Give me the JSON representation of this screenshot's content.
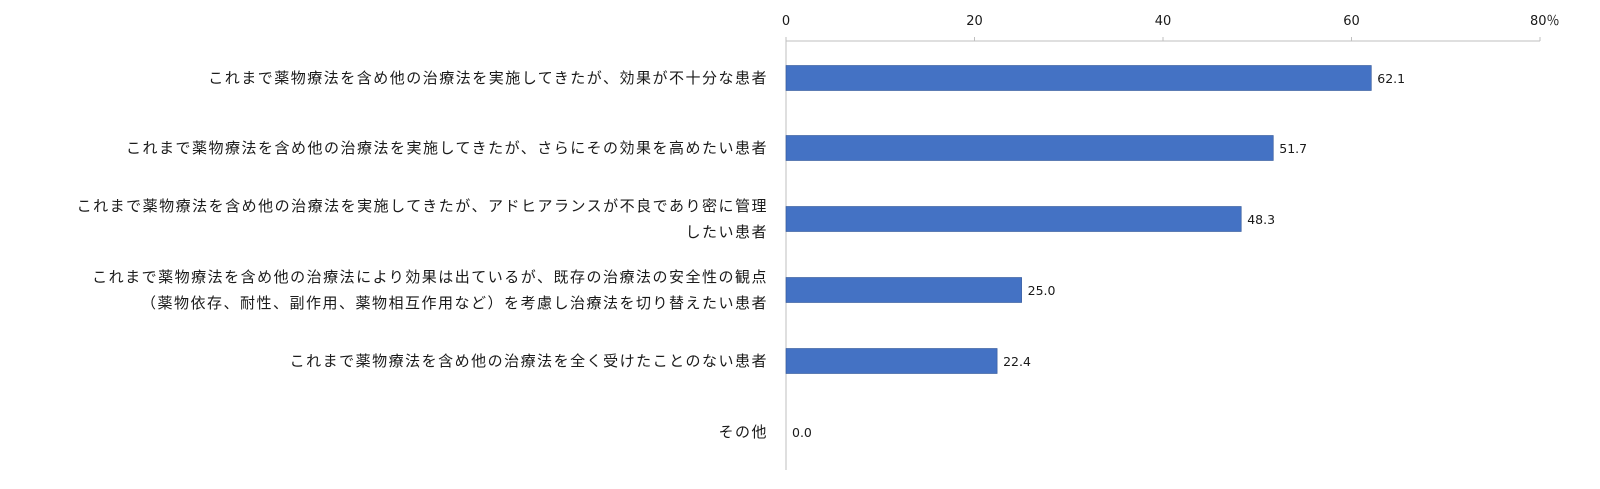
{
  "chart_data": {
    "type": "bar",
    "orientation": "horizontal",
    "categories": [
      "これまで薬物療法を含め他の治療法を実施してきたが、効果が不十分な患者",
      "これまで薬物療法を含め他の治療法を実施してきたが、さらにその効果を高めたい患者",
      "これまで薬物療法を含め他の治療法を実施してきたが、アドヒアランスが不良であり密に管理したい患者",
      "これまで薬物療法を含め他の治療法により効果は出ているが、既存の治療法の安全性の観点（薬物依存、耐性、副作用、薬物相互作用など）を考慮し治療法を切り替えたい患者",
      "これまで薬物療法を含め他の治療法を全く受けたことのない患者",
      "その他"
    ],
    "category_lines": [
      [
        "これまで薬物療法を含め他の治療法を実施してきたが、効果が不十分な患者"
      ],
      [
        "これまで薬物療法を含め他の治療法を実施してきたが、さらにその効果を高めたい患者"
      ],
      [
        "これまで薬物療法を含め他の治療法を実施してきたが、アドヒアランスが不良であり密に管理",
        "したい患者"
      ],
      [
        "これまで薬物療法を含め他の治療法により効果は出ているが、既存の治療法の安全性の観点",
        "（薬物依存、耐性、副作用、薬物相互作用など）を考慮し治療法を切り替えたい患者"
      ],
      [
        "これまで薬物療法を含め他の治療法を全く受けたことのない患者"
      ],
      [
        "その他"
      ]
    ],
    "values": [
      62.1,
      51.7,
      48.3,
      25.0,
      22.4,
      0.0
    ],
    "data_labels": [
      "62.1",
      "51.7",
      "48.3",
      "25.0",
      "22.4",
      "0.0"
    ],
    "xlim": [
      0,
      80
    ],
    "ticks": [
      0,
      20,
      40,
      60,
      80
    ],
    "tick_labels": [
      "0",
      "20",
      "40",
      "60",
      "80％"
    ],
    "axis_position": "top",
    "grid": false,
    "legend": "none",
    "bar_color": "#4472c4"
  }
}
